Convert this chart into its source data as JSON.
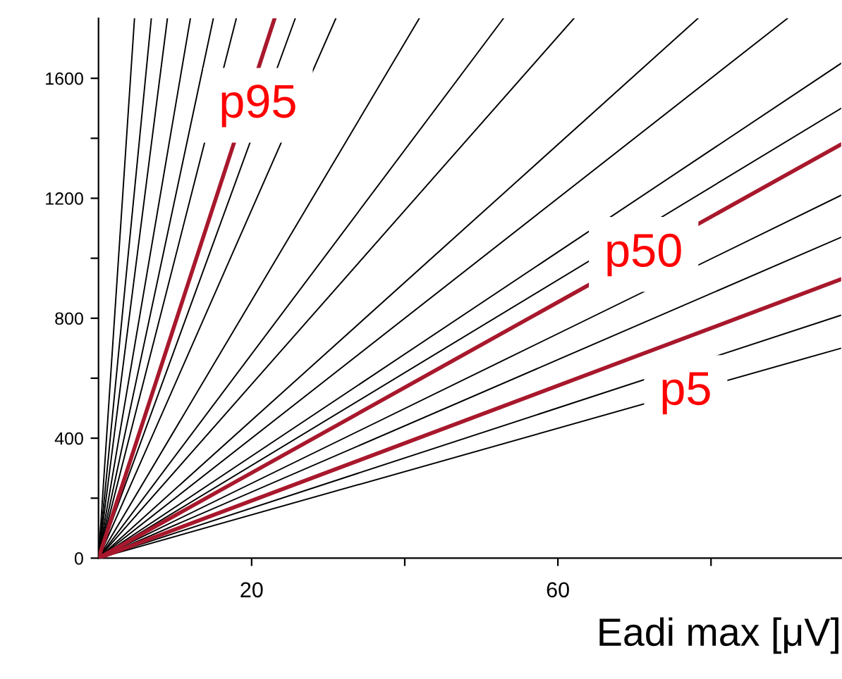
{
  "chart_data": {
    "type": "line",
    "xlabel": "Eadi max [μV]",
    "xlim": [
      0,
      97
    ],
    "ylim": [
      0,
      1800
    ],
    "xticks": [
      20,
      {
        "value": 40,
        "label": null
      },
      60,
      {
        "value": 80,
        "label": null
      }
    ],
    "yticks": [
      0,
      {
        "value": 200,
        "label": null
      },
      400,
      {
        "value": 600,
        "label": null
      },
      800,
      {
        "value": 1000,
        "label": null
      },
      1200,
      {
        "value": 1400,
        "label": null
      },
      1600
    ],
    "grid": false,
    "legend": false,
    "marker": "none",
    "line_style": "solid",
    "annotations": [
      {
        "text": "p95",
        "x": 19.3,
        "y": 1510
      },
      {
        "text": "p50",
        "x": 71.2,
        "y": 1013
      },
      {
        "text": "p5",
        "x": 76.7,
        "y": 735
      }
    ],
    "series": [
      {
        "color": "#000000",
        "x": [
          0,
          4.7
        ],
        "values": [
          0,
          1800
        ]
      },
      {
        "color": "#000000",
        "x": [
          0,
          6.9
        ],
        "values": [
          0,
          1800
        ]
      },
      {
        "color": "#000000",
        "x": [
          0,
          9.0
        ],
        "values": [
          0,
          1800
        ]
      },
      {
        "color": "#000000",
        "x": [
          0,
          12.0
        ],
        "values": [
          0,
          1800
        ]
      },
      {
        "color": "#000000",
        "x": [
          0,
          15.0
        ],
        "values": [
          0,
          1800
        ]
      },
      {
        "color": "#000000",
        "x": [
          0,
          18.0
        ],
        "values": [
          0,
          1800
        ]
      },
      {
        "color": "#000000",
        "x": [
          0,
          25.7
        ],
        "values": [
          0,
          1800
        ]
      },
      {
        "color": "#000000",
        "x": [
          0,
          31.0
        ],
        "values": [
          0,
          1800
        ]
      },
      {
        "color": "#000000",
        "x": [
          0,
          41.9
        ],
        "values": [
          0,
          1800
        ]
      },
      {
        "color": "#000000",
        "x": [
          0,
          52.9
        ],
        "values": [
          0,
          1800
        ]
      },
      {
        "color": "#000000",
        "x": [
          0,
          62.1
        ],
        "values": [
          0,
          1800
        ]
      },
      {
        "color": "#000000",
        "x": [
          0,
          78.3
        ],
        "values": [
          0,
          1800
        ]
      },
      {
        "color": "#000000",
        "x": [
          0,
          90.0
        ],
        "values": [
          0,
          1800
        ]
      },
      {
        "color": "#000000",
        "x": [
          0,
          97
        ],
        "values": [
          0,
          1650
        ]
      },
      {
        "color": "#000000",
        "x": [
          0,
          97
        ],
        "values": [
          0,
          1500
        ]
      },
      {
        "color": "#000000",
        "x": [
          0,
          97
        ],
        "values": [
          0,
          1210
        ]
      },
      {
        "color": "#000000",
        "x": [
          0,
          97
        ],
        "values": [
          0,
          1070
        ]
      },
      {
        "color": "#000000",
        "x": [
          0,
          97
        ],
        "values": [
          0,
          810
        ]
      },
      {
        "color": "#000000",
        "x": [
          0,
          97
        ],
        "values": [
          0,
          700
        ]
      },
      {
        "color": "#a8182c",
        "x": [
          0,
          23
        ],
        "values": [
          0,
          1800
        ]
      },
      {
        "color": "#a8182c",
        "x": [
          0,
          97
        ],
        "values": [
          0,
          1380
        ]
      },
      {
        "color": "#a8182c",
        "x": [
          0,
          97
        ],
        "values": [
          0,
          930
        ]
      }
    ]
  }
}
